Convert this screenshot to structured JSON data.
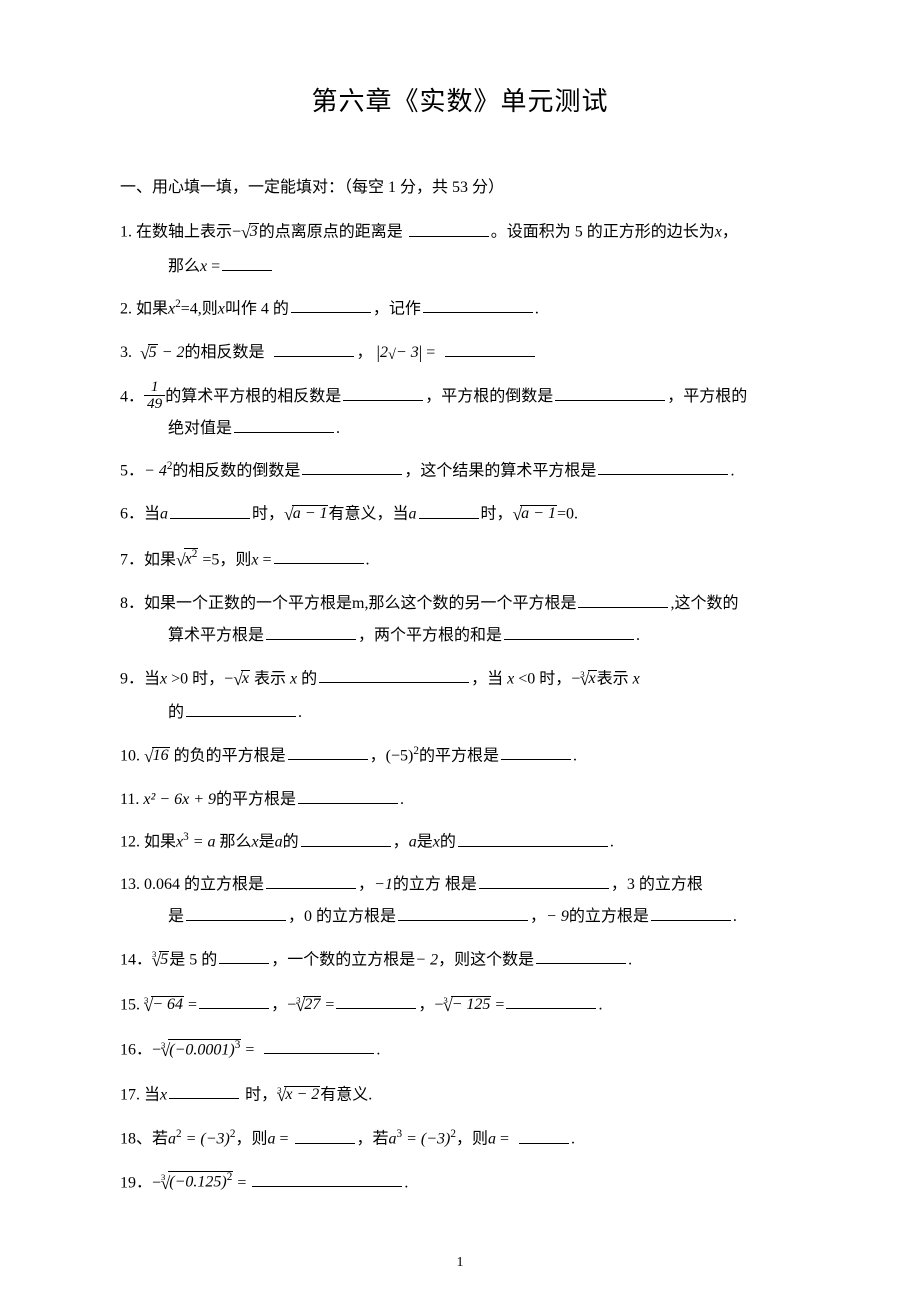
{
  "title": "第六章《实数》单元测试",
  "section1": "一、用心填一填，一定能填对：（每空 1 分，共 53 分）",
  "q1a": "1. 在数轴上表示−",
  "q1b": "的点离原点的距离是",
  "q1c": "。设面积为 5 的正方形的边长为",
  "q1d": "，",
  "q1e": "那么",
  "q1f": " =",
  "sqrt3": "3",
  "xvar": "x",
  "q2a": "2. 如果",
  "q2b": "=4,则",
  "q2c": "叫作 4 的",
  "q2d": "，记作",
  "q2e": ".",
  "xsq": "x",
  "two": "2",
  "q3a": "3.",
  "q3b": "的相反数是",
  "comma": "，",
  "q3c": " =",
  "sqrt5m2_in": "5",
  "minus2": " − 2",
  "twominus3": "2",
  "minus3": "− 3",
  "q4a": "4．",
  "one": "1",
  "fortynine": "49",
  "q4b": "的算术平方根的相反数是",
  "q4c": "，平方根的倒数是",
  "q4d": "，平方根的",
  "q4e": "绝对值是",
  "period": ".",
  "q5a": "5．",
  "minus4sq": "− 4",
  "q5b": "的相反数的倒数是",
  "q5c": "，这个结果的算术平方根是",
  "q6a": "6．当",
  "avar": "a",
  "q6b": "时，",
  "am1": "a − 1",
  "q6c": "有意义，当",
  "q6d": "时，",
  "q6e": "=0.",
  "q7a": "7．如果",
  "xsq2": "x",
  "q7b": " =5，则",
  "q7c": " =",
  "q8a": "8．如果一个正数的一个平方根是m,那么这个数的另一个平方根是",
  "q8b": ",这个数的",
  "q8c": "算术平方根是",
  "q8d": "，两个平方根的和是",
  "q9a": "9．当",
  "q9b": " >0 时，−",
  "q9c": " 表示 ",
  "q9d": " 的",
  "q9e": "，当 ",
  "q9f": " <0 时，−",
  "q9g": "表示 ",
  "q9h": "的",
  "sqrtx": "x",
  "q10a": "10. ",
  "sixteen": "16",
  "q10b": " 的负的平方根是",
  "q10c": "，(−5)",
  "q10d": "的平方根是",
  "q11a": "11. ",
  "q11exp": "x² − 6x + 9",
  "q11b": "的平方根是",
  "q12a": "12. 如果",
  "xcubea": "x",
  "three": "3",
  "eqA": " = a ",
  "q12b": "那么",
  "q12c": "是",
  "q12d": "的",
  "q12e": "，",
  "q12f": "是",
  "q12g": "的",
  "q13a": "13. 0.064 的立方根是",
  "q13b": "，",
  "neg1": "−1",
  "q13c": "的立方 根是",
  "q13d": "，3 的立方根",
  "q13e": "是",
  "q13f": "，0 的立方根是",
  "q13g": "，",
  "neg9": "− 9",
  "q13h": "的立方根是",
  "q14a": "14．",
  "five": "5",
  "q14b": "是 5 的",
  "q14c": "，一个数的立方根是",
  "neg2": "− 2",
  "q14d": "，则这个数是",
  "q15a": "15. ",
  "neg64": "− 64",
  "eq": " =",
  "q15b": "，−",
  "twentyseven": "27",
  "q15c": "，−",
  "neg125": "− 125",
  "q16a": "16．−",
  "neg0001cube": "(−0.0001)",
  "q17a": "17. 当",
  "q17b": " 时，",
  "xm2": "x − 2",
  "q17c": "有意义.",
  "q18a": "18、若",
  "asq": "a",
  "eqneg3sq": " = (−3)",
  "q18b": "，则",
  "q18c": "，若",
  "acube": "a",
  "q18d": "，则",
  "q19a": "19．−",
  "neg125sq": "(−0.125)",
  "pagenum": "1"
}
